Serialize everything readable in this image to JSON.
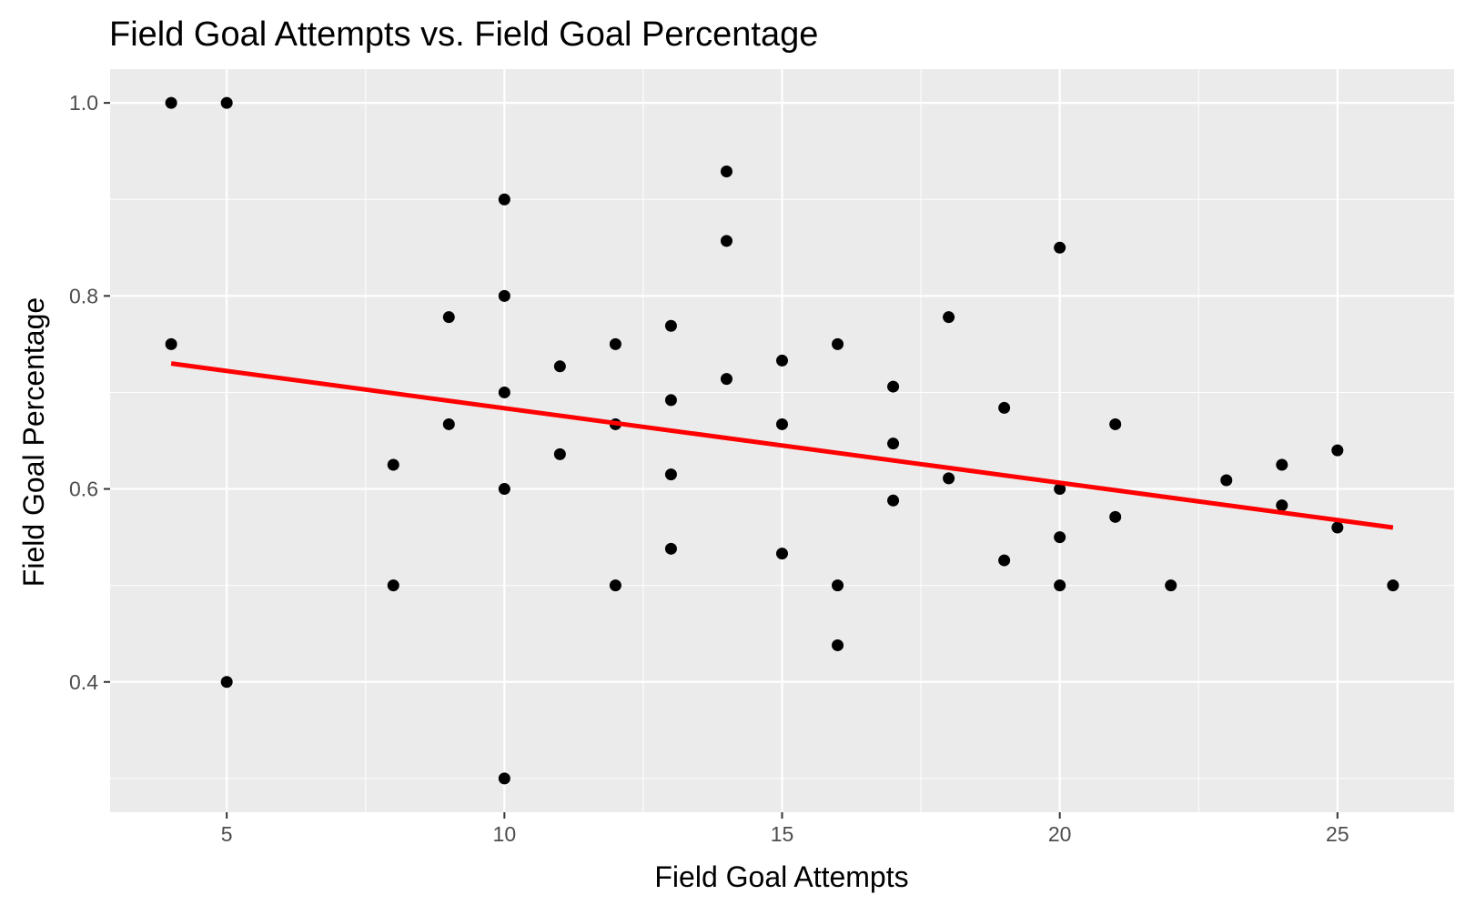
{
  "chart_data": {
    "type": "scatter",
    "title": "Field Goal Attempts vs. Field Goal Percentage",
    "xlabel": "Field Goal Attempts",
    "ylabel": "Field Goal Percentage",
    "xlim": [
      2.9,
      27.1
    ],
    "ylim": [
      0.265,
      1.035
    ],
    "x_ticks": [
      5,
      10,
      15,
      20,
      25
    ],
    "x_tick_labels": [
      "5",
      "10",
      "15",
      "20",
      "25"
    ],
    "y_ticks": [
      0.4,
      0.6,
      0.8,
      1.0
    ],
    "y_tick_labels": [
      "0.4",
      "0.6",
      "0.8",
      "1.0"
    ],
    "grid": true,
    "panel_background": "#ebebeb",
    "grid_color": "#ffffff",
    "point_color": "#000000",
    "trend_color": "#ff0000",
    "points": [
      {
        "x": 4,
        "y": 1.0
      },
      {
        "x": 4,
        "y": 0.75
      },
      {
        "x": 5,
        "y": 1.0
      },
      {
        "x": 5,
        "y": 0.4
      },
      {
        "x": 8,
        "y": 0.625
      },
      {
        "x": 8,
        "y": 0.5
      },
      {
        "x": 9,
        "y": 0.778
      },
      {
        "x": 9,
        "y": 0.667
      },
      {
        "x": 10,
        "y": 0.9
      },
      {
        "x": 10,
        "y": 0.8
      },
      {
        "x": 10,
        "y": 0.7
      },
      {
        "x": 10,
        "y": 0.6
      },
      {
        "x": 10,
        "y": 0.3
      },
      {
        "x": 11,
        "y": 0.727
      },
      {
        "x": 11,
        "y": 0.636
      },
      {
        "x": 12,
        "y": 0.75
      },
      {
        "x": 12,
        "y": 0.667
      },
      {
        "x": 12,
        "y": 0.5
      },
      {
        "x": 13,
        "y": 0.769
      },
      {
        "x": 13,
        "y": 0.692
      },
      {
        "x": 13,
        "y": 0.615
      },
      {
        "x": 13,
        "y": 0.538
      },
      {
        "x": 14,
        "y": 0.929
      },
      {
        "x": 14,
        "y": 0.857
      },
      {
        "x": 14,
        "y": 0.714
      },
      {
        "x": 15,
        "y": 0.733
      },
      {
        "x": 15,
        "y": 0.667
      },
      {
        "x": 15,
        "y": 0.533
      },
      {
        "x": 16,
        "y": 0.75
      },
      {
        "x": 16,
        "y": 0.5
      },
      {
        "x": 16,
        "y": 0.438
      },
      {
        "x": 17,
        "y": 0.706
      },
      {
        "x": 17,
        "y": 0.647
      },
      {
        "x": 17,
        "y": 0.588
      },
      {
        "x": 18,
        "y": 0.778
      },
      {
        "x": 18,
        "y": 0.611
      },
      {
        "x": 19,
        "y": 0.684
      },
      {
        "x": 19,
        "y": 0.526
      },
      {
        "x": 20,
        "y": 0.85
      },
      {
        "x": 20,
        "y": 0.6
      },
      {
        "x": 20,
        "y": 0.55
      },
      {
        "x": 20,
        "y": 0.5
      },
      {
        "x": 21,
        "y": 0.667
      },
      {
        "x": 21,
        "y": 0.571
      },
      {
        "x": 22,
        "y": 0.5
      },
      {
        "x": 23,
        "y": 0.609
      },
      {
        "x": 24,
        "y": 0.625
      },
      {
        "x": 24,
        "y": 0.583
      },
      {
        "x": 25,
        "y": 0.64
      },
      {
        "x": 25,
        "y": 0.56
      },
      {
        "x": 26,
        "y": 0.5
      }
    ],
    "trend_line": {
      "x": [
        4,
        26
      ],
      "y": [
        0.73,
        0.56
      ]
    }
  }
}
